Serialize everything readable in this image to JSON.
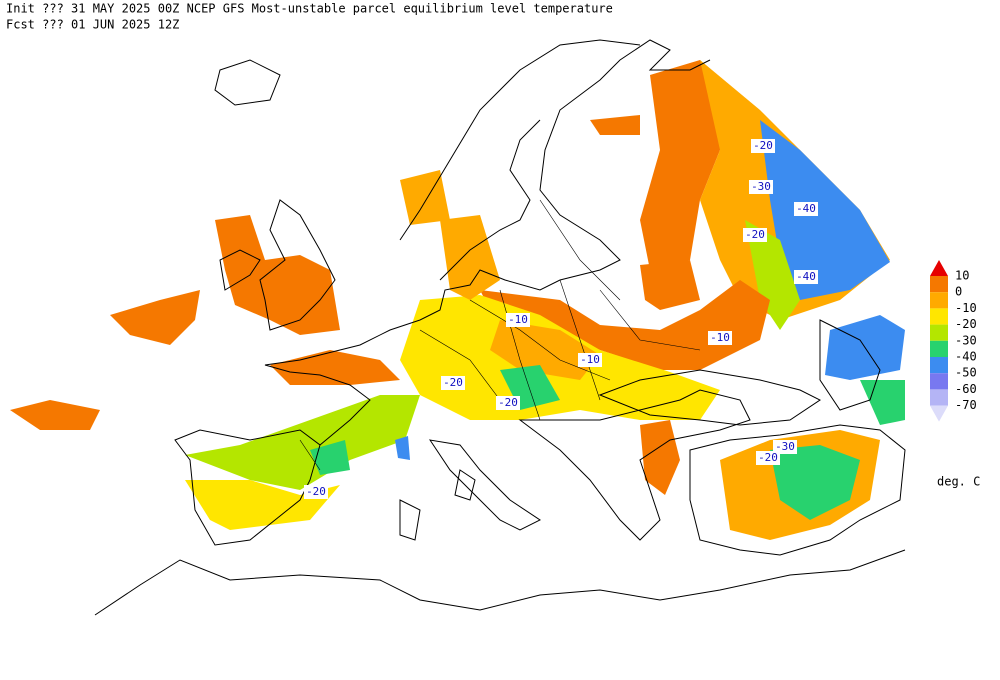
{
  "header": {
    "init": "Init  ??? 31 MAY 2025 00Z  NCEP GFS Most-unstable parcel equilibrium level temperature",
    "fcst": "Fcst ??? 01 JUN 2025 12Z"
  },
  "legend": {
    "levels": [
      10,
      0,
      -10,
      -20,
      -30,
      -40,
      -50,
      -60,
      -70
    ],
    "colors": [
      "#e60000",
      "#f57800",
      "#ffaa00",
      "#ffe600",
      "#b4e600",
      "#28d26e",
      "#3c8cf0",
      "#7878f0",
      "#b4b4f5",
      "#dcdcfa"
    ],
    "units": "deg. C"
  },
  "map": {
    "contour_labels": [
      -20,
      -30,
      -40,
      -20,
      -40,
      -10,
      -10,
      -10,
      -20,
      -20,
      -20,
      -30,
      -20
    ]
  }
}
